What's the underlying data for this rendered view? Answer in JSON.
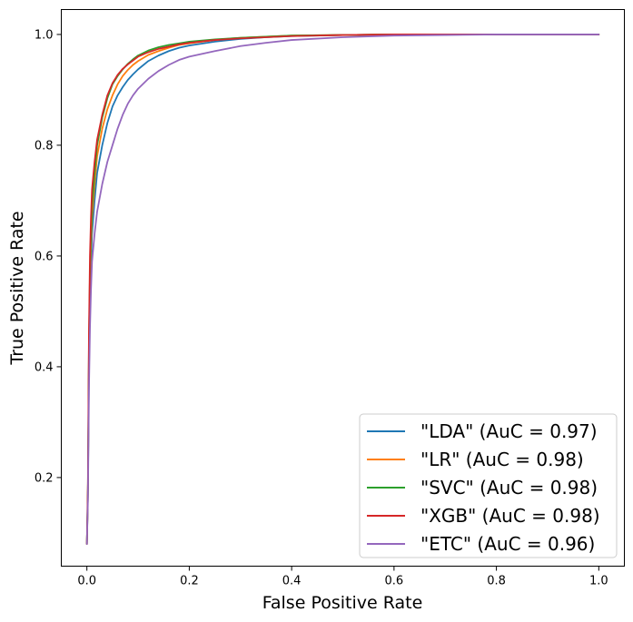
{
  "chart_data": {
    "type": "line",
    "title": "",
    "xlabel": "False Positive Rate",
    "ylabel": "True Positive Rate",
    "xlim": [
      -0.05,
      1.05
    ],
    "ylim": [
      0.04,
      1.045
    ],
    "xticks": [
      0.0,
      0.2,
      0.4,
      0.6,
      0.8,
      1.0
    ],
    "yticks": [
      0.2,
      0.4,
      0.6,
      0.8,
      1.0
    ],
    "xtick_labels": [
      "0.0",
      "0.2",
      "0.4",
      "0.6",
      "0.8",
      "1.0"
    ],
    "ytick_labels": [
      "0.2",
      "0.4",
      "0.6",
      "0.8",
      "1.0"
    ],
    "grid": false,
    "legend_position": "lower-right",
    "series": [
      {
        "name": "\"LDA\" (AuC = 0.97)",
        "color": "#1f77b4",
        "x": [
          0.0,
          0.002,
          0.004,
          0.006,
          0.008,
          0.01,
          0.015,
          0.02,
          0.03,
          0.04,
          0.05,
          0.06,
          0.07,
          0.08,
          0.09,
          0.1,
          0.12,
          0.14,
          0.16,
          0.18,
          0.2,
          0.25,
          0.3,
          0.35,
          0.4,
          0.5,
          0.6,
          0.7,
          0.8,
          0.9,
          1.0
        ],
        "y": [
          0.08,
          0.17,
          0.4,
          0.52,
          0.59,
          0.64,
          0.7,
          0.75,
          0.8,
          0.84,
          0.87,
          0.89,
          0.905,
          0.918,
          0.928,
          0.937,
          0.952,
          0.962,
          0.97,
          0.976,
          0.98,
          0.987,
          0.992,
          0.995,
          0.997,
          0.999,
          1.0,
          1.0,
          1.0,
          1.0,
          1.0
        ]
      },
      {
        "name": "\"LR\" (AuC = 0.98)",
        "color": "#ff7f0e",
        "x": [
          0.0,
          0.002,
          0.004,
          0.006,
          0.008,
          0.01,
          0.015,
          0.02,
          0.03,
          0.04,
          0.05,
          0.06,
          0.07,
          0.08,
          0.09,
          0.1,
          0.12,
          0.14,
          0.16,
          0.18,
          0.2,
          0.25,
          0.3,
          0.35,
          0.4,
          0.5,
          0.6,
          0.7,
          0.8,
          0.9,
          1.0
        ],
        "y": [
          0.08,
          0.17,
          0.42,
          0.55,
          0.62,
          0.67,
          0.73,
          0.78,
          0.83,
          0.865,
          0.89,
          0.91,
          0.925,
          0.936,
          0.945,
          0.952,
          0.963,
          0.97,
          0.976,
          0.981,
          0.984,
          0.99,
          0.994,
          0.996,
          0.998,
          0.999,
          1.0,
          1.0,
          1.0,
          1.0,
          1.0
        ]
      },
      {
        "name": "\"SVC\" (AuC = 0.98)",
        "color": "#2ca02c",
        "x": [
          0.0,
          0.002,
          0.004,
          0.006,
          0.008,
          0.01,
          0.015,
          0.02,
          0.03,
          0.04,
          0.05,
          0.06,
          0.07,
          0.08,
          0.09,
          0.1,
          0.12,
          0.14,
          0.16,
          0.18,
          0.2,
          0.25,
          0.3,
          0.35,
          0.4,
          0.5,
          0.6,
          0.7,
          0.8,
          0.9,
          1.0
        ],
        "y": [
          0.08,
          0.18,
          0.44,
          0.57,
          0.64,
          0.69,
          0.75,
          0.8,
          0.85,
          0.885,
          0.91,
          0.925,
          0.937,
          0.947,
          0.955,
          0.962,
          0.971,
          0.977,
          0.981,
          0.984,
          0.987,
          0.991,
          0.994,
          0.996,
          0.998,
          0.999,
          1.0,
          1.0,
          1.0,
          1.0,
          1.0
        ]
      },
      {
        "name": "\"XGB\" (AuC = 0.98)",
        "color": "#d62728",
        "x": [
          0.0,
          0.002,
          0.004,
          0.006,
          0.008,
          0.01,
          0.015,
          0.02,
          0.03,
          0.04,
          0.05,
          0.06,
          0.07,
          0.08,
          0.09,
          0.1,
          0.12,
          0.14,
          0.16,
          0.18,
          0.2,
          0.25,
          0.3,
          0.35,
          0.4,
          0.5,
          0.6,
          0.7,
          0.8,
          0.9,
          1.0
        ],
        "y": [
          0.08,
          0.19,
          0.46,
          0.6,
          0.67,
          0.72,
          0.77,
          0.81,
          0.855,
          0.89,
          0.912,
          0.927,
          0.938,
          0.946,
          0.953,
          0.96,
          0.968,
          0.974,
          0.978,
          0.982,
          0.985,
          0.99,
          0.993,
          0.995,
          0.997,
          0.999,
          1.0,
          1.0,
          1.0,
          1.0,
          1.0
        ]
      },
      {
        "name": "\"ETC\" (AuC = 0.96)",
        "color": "#9467bd",
        "x": [
          0.0,
          0.002,
          0.004,
          0.006,
          0.008,
          0.01,
          0.015,
          0.02,
          0.03,
          0.04,
          0.05,
          0.06,
          0.07,
          0.08,
          0.09,
          0.1,
          0.12,
          0.14,
          0.16,
          0.18,
          0.2,
          0.25,
          0.3,
          0.35,
          0.4,
          0.5,
          0.6,
          0.7,
          0.8,
          0.9,
          1.0
        ],
        "y": [
          0.08,
          0.16,
          0.36,
          0.47,
          0.54,
          0.59,
          0.64,
          0.68,
          0.73,
          0.77,
          0.8,
          0.83,
          0.855,
          0.875,
          0.89,
          0.902,
          0.92,
          0.934,
          0.945,
          0.954,
          0.96,
          0.97,
          0.979,
          0.985,
          0.99,
          0.995,
          0.998,
          0.999,
          1.0,
          1.0,
          1.0
        ]
      }
    ]
  }
}
